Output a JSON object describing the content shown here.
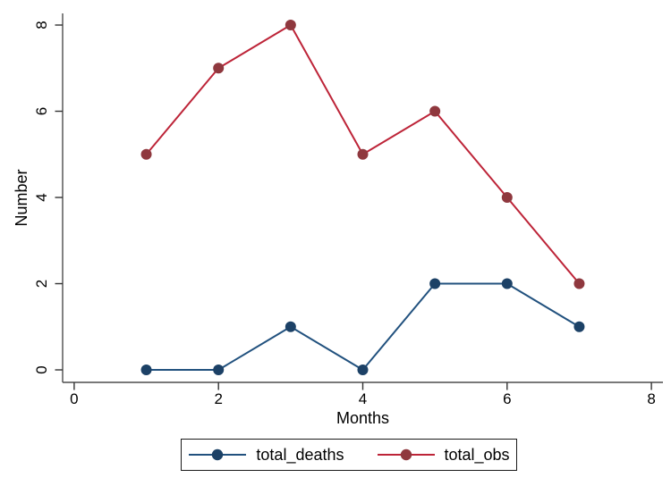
{
  "chart_data": {
    "type": "line",
    "x": [
      1,
      2,
      3,
      4,
      5,
      6,
      7
    ],
    "series": [
      {
        "name": "total_deaths",
        "values": [
          0,
          0,
          1,
          0,
          2,
          2,
          1
        ],
        "line_color": "#21517e",
        "marker_color": "#1c4166"
      },
      {
        "name": "total_obs",
        "values": [
          5,
          7,
          8,
          5,
          6,
          4,
          2
        ],
        "line_color": "#bd2438",
        "marker_color": "#8f383e"
      }
    ],
    "title": "",
    "xlabel": "Months",
    "ylabel": "Number",
    "x_ticks": [
      0,
      2,
      4,
      6,
      8
    ],
    "y_ticks": [
      0,
      2,
      4,
      6,
      8
    ],
    "xlim": [
      -0.16,
      8.16
    ],
    "ylim": [
      -0.29,
      8.27
    ],
    "grid": false,
    "legend_position": "bottom",
    "background_color": "#ffffff",
    "axis_color": "#4d4d4d",
    "tick_color": "#333333",
    "text_color": "#000000",
    "marker_size": 6,
    "line_width": 2
  }
}
